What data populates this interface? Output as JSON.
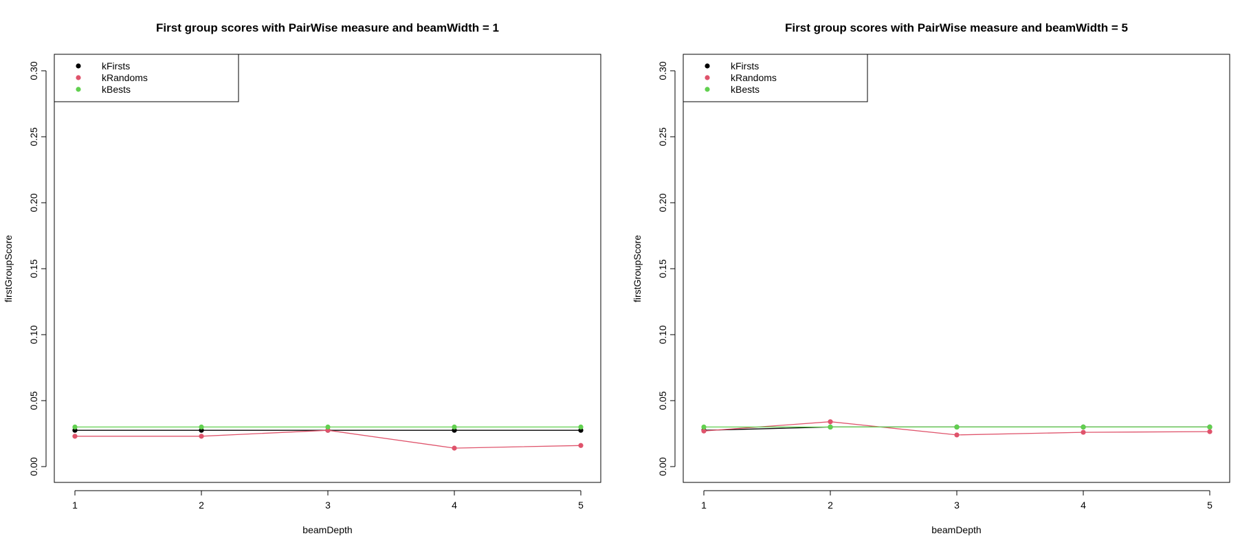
{
  "chart_data": [
    {
      "type": "line",
      "title": "First group scores with PairWise measure and beamWidth = 1",
      "xlabel": "beamDepth",
      "ylabel": "firstGroupScore",
      "xlim": [
        1,
        5
      ],
      "ylim": [
        0,
        0.3
      ],
      "x_ticks": [
        "1",
        "2",
        "3",
        "4",
        "5"
      ],
      "y_ticks": [
        "0.00",
        "0.05",
        "0.10",
        "0.15",
        "0.20",
        "0.25",
        "0.30"
      ],
      "grid": false,
      "legend_position": "top-left",
      "x": [
        1,
        2,
        3,
        4,
        5
      ],
      "series": [
        {
          "name": "kFirsts",
          "color": "#000000",
          "values": [
            0.0275,
            0.0275,
            0.0275,
            0.0275,
            0.0275
          ]
        },
        {
          "name": "kRandoms",
          "color": "#DF536B",
          "values": [
            0.023,
            0.023,
            0.0275,
            0.014,
            0.016
          ]
        },
        {
          "name": "kBests",
          "color": "#61D04F",
          "values": [
            0.03,
            0.03,
            0.03,
            0.03,
            0.03
          ]
        }
      ]
    },
    {
      "type": "line",
      "title": "First group scores with PairWise measure and beamWidth = 5",
      "xlabel": "beamDepth",
      "ylabel": "firstGroupScore",
      "xlim": [
        1,
        5
      ],
      "ylim": [
        0,
        0.3
      ],
      "x_ticks": [
        "1",
        "2",
        "3",
        "4",
        "5"
      ],
      "y_ticks": [
        "0.00",
        "0.05",
        "0.10",
        "0.15",
        "0.20",
        "0.25",
        "0.30"
      ],
      "grid": false,
      "legend_position": "top-left",
      "x": [
        1,
        2,
        3,
        4,
        5
      ],
      "series": [
        {
          "name": "kFirsts",
          "color": "#000000",
          "values": [
            0.0275,
            0.03,
            0.03,
            0.03,
            0.03
          ]
        },
        {
          "name": "kRandoms",
          "color": "#DF536B",
          "values": [
            0.027,
            0.034,
            0.024,
            0.026,
            0.0265
          ]
        },
        {
          "name": "kBests",
          "color": "#61D04F",
          "values": [
            0.03,
            0.03,
            0.03,
            0.03,
            0.03
          ]
        }
      ]
    }
  ]
}
